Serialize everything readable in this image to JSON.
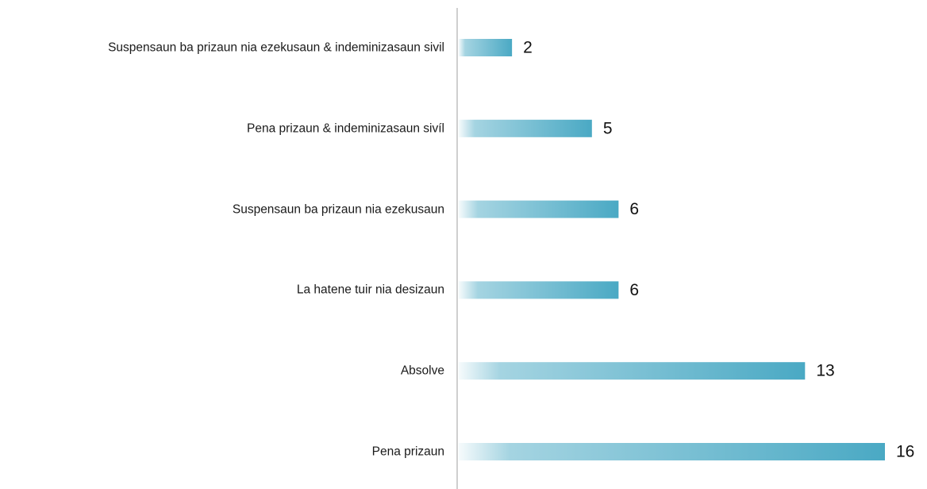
{
  "chart_data": {
    "type": "bar",
    "orientation": "horizontal",
    "categories": [
      "Suspensaun ba prizaun nia ezekusaun  & indeminizasaun sivil",
      "Pena prizaun & indeminizasaun sivíl",
      "Suspensaun ba prizaun nia ezekusaun",
      "La hatene tuir nia desizaun",
      "Absolve",
      "Pena prizaun"
    ],
    "values": [
      2,
      5,
      6,
      6,
      13,
      16
    ],
    "color": "#4aa9c4"
  }
}
